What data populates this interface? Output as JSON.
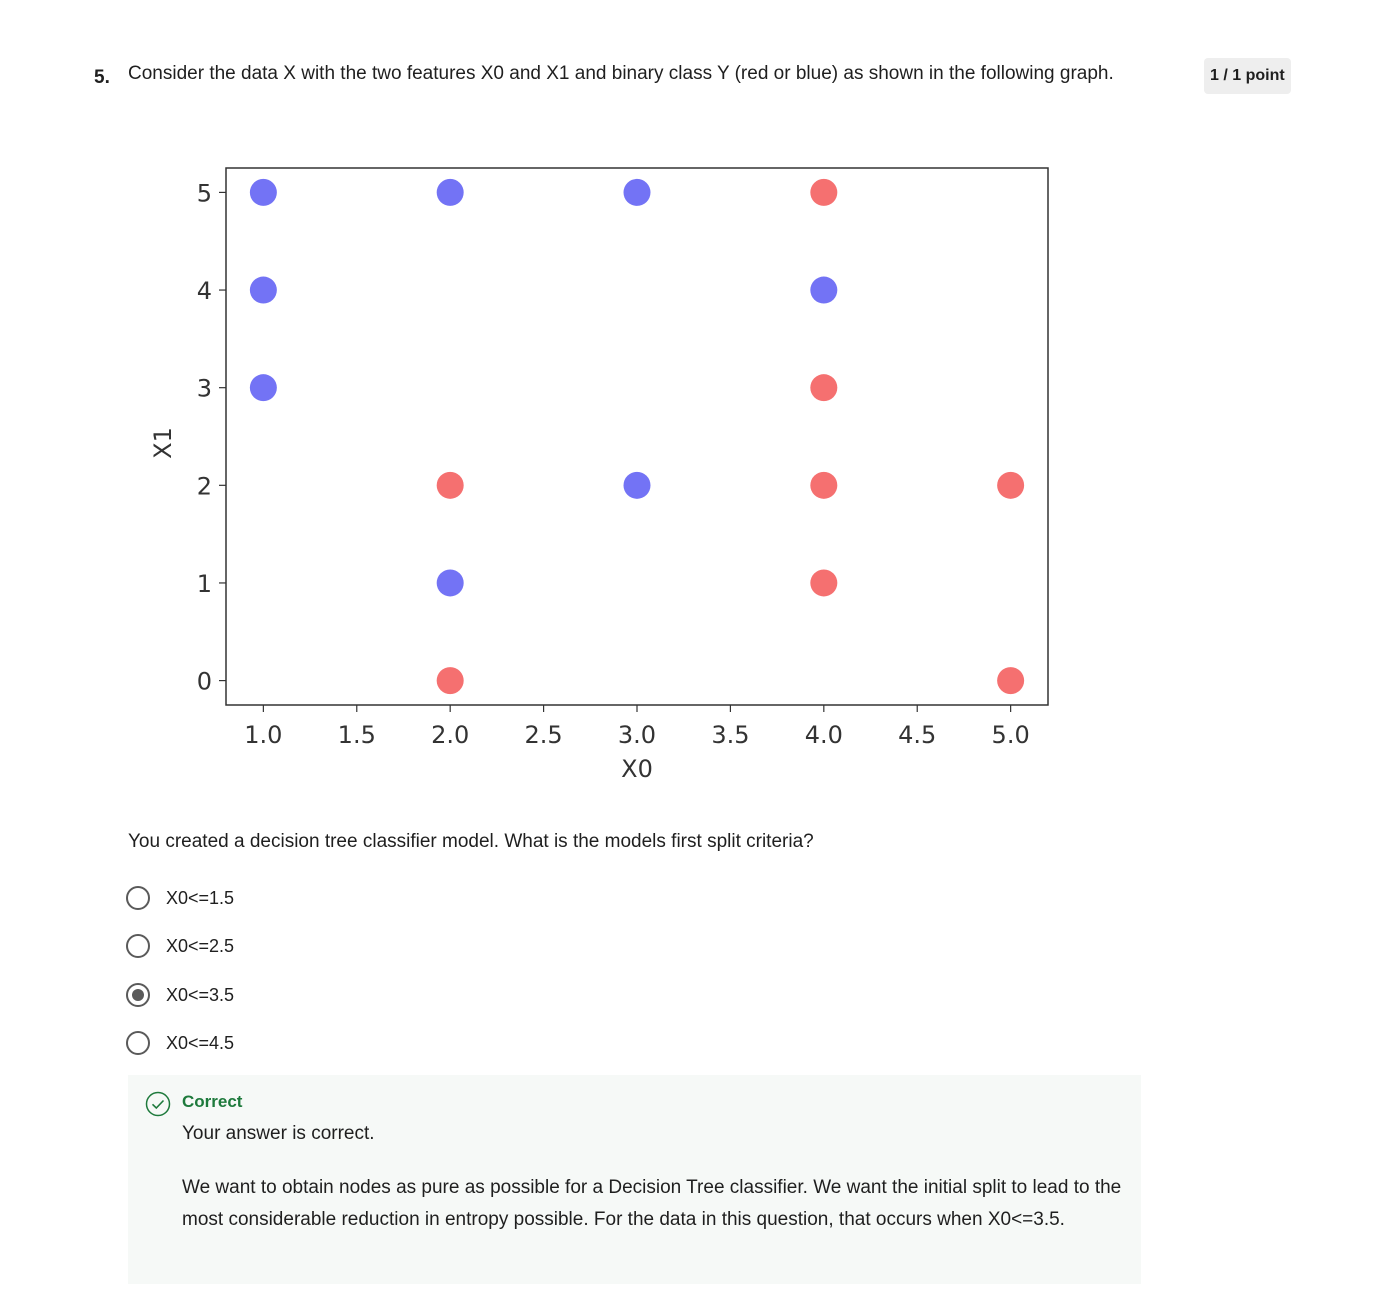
{
  "question": {
    "number": "5.",
    "text": "Consider the data X with the two features X0 and X1 and binary class Y (red or blue) as shown in the following graph.",
    "points": "1 / 1 point",
    "subtext": "You created a decision tree classifier model. What is the models first split criteria?"
  },
  "chart_data": {
    "type": "scatter",
    "xlabel": "X0",
    "ylabel": "X1",
    "xlim": [
      0.8,
      5.2
    ],
    "ylim": [
      -0.25,
      5.25
    ],
    "xticks": [
      "1.0",
      "1.5",
      "2.0",
      "2.5",
      "3.0",
      "3.5",
      "4.0",
      "4.5",
      "5.0"
    ],
    "yticks": [
      "0",
      "1",
      "2",
      "3",
      "4",
      "5"
    ],
    "grid": false,
    "colors": {
      "blue": "#6b6bf4",
      "red": "#f46868"
    },
    "series": [
      {
        "color": "blue",
        "points": [
          [
            1,
            5
          ],
          [
            2,
            5
          ],
          [
            3,
            5
          ],
          [
            1,
            4
          ],
          [
            4,
            4
          ],
          [
            1,
            3
          ],
          [
            3,
            2
          ],
          [
            2,
            1
          ]
        ]
      },
      {
        "color": "red",
        "points": [
          [
            4,
            5
          ],
          [
            4,
            3
          ],
          [
            2,
            2
          ],
          [
            4,
            2
          ],
          [
            5,
            2
          ],
          [
            4,
            1
          ],
          [
            2,
            0
          ],
          [
            5,
            0
          ]
        ]
      }
    ]
  },
  "options": [
    {
      "label": "X0<=1.5",
      "selected": false
    },
    {
      "label": "X0<=2.5",
      "selected": false
    },
    {
      "label": "X0<=3.5",
      "selected": true
    },
    {
      "label": "X0<=4.5",
      "selected": false
    }
  ],
  "feedback": {
    "status": "Correct",
    "message": "Your answer is correct.",
    "explanation": "We want to obtain nodes as pure as possible for a Decision Tree classifier. We want the initial split to lead to the most considerable reduction in entropy possible. For the data in this question, that occurs when X0<=3.5.",
    "accent_color": "#1e7a3c"
  }
}
